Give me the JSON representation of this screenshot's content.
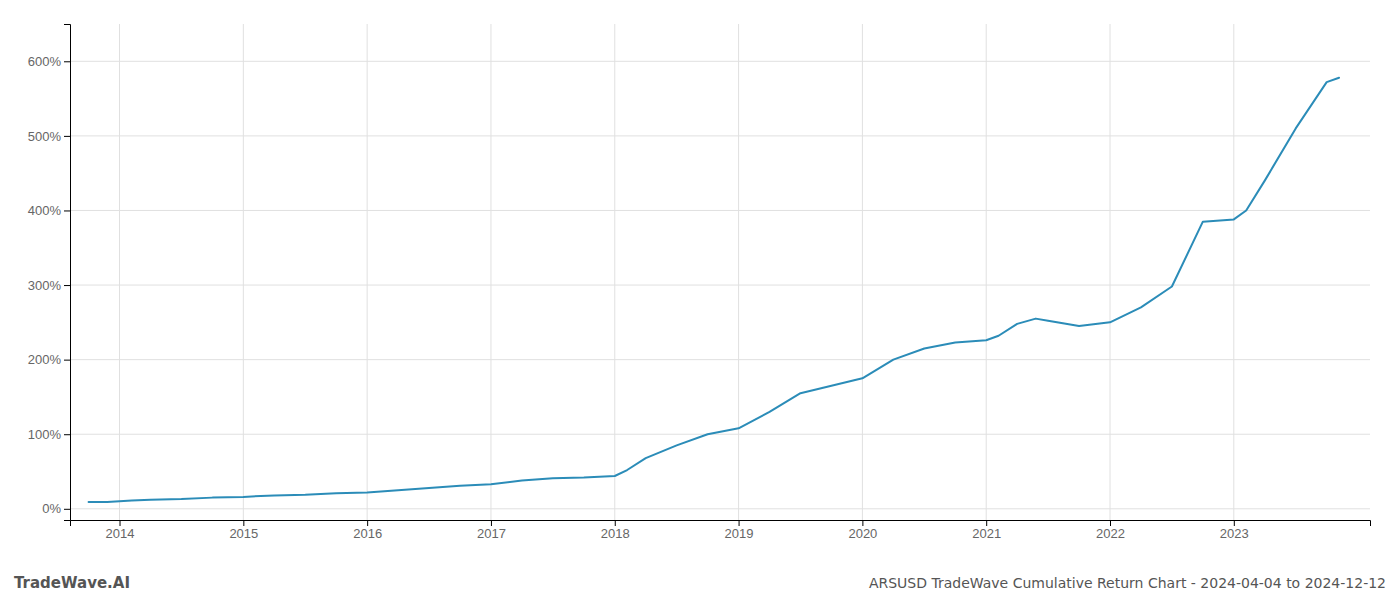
{
  "chart_data": {
    "type": "line",
    "title": "ARSUSD TradeWave Cumulative Return Chart - 2024-04-04 to 2024-12-12",
    "annotations": [
      "TradeWave.AI"
    ],
    "color": "#2b8cb8",
    "grid": true,
    "x": [
      2013.75,
      2013.9,
      2014.0,
      2014.1,
      2014.25,
      2014.5,
      2014.75,
      2015.0,
      2015.25,
      2015.5,
      2015.75,
      2016.0,
      2016.25,
      2016.5,
      2016.75,
      2017.0,
      2017.25,
      2017.5,
      2017.75,
      2018.0,
      2018.1,
      2018.25,
      2018.5,
      2018.75,
      2019.0,
      2019.25,
      2019.5,
      2019.75,
      2020.0,
      2020.25,
      2020.5,
      2020.75,
      2021.0,
      2021.1,
      2021.25,
      2021.4,
      2021.5,
      2021.75,
      2022.0,
      2022.25,
      2022.5,
      2022.75,
      2023.0,
      2023.1,
      2023.25,
      2023.5,
      2023.75,
      2023.85
    ],
    "values": [
      9,
      9,
      10,
      11,
      12,
      13,
      15,
      16,
      18,
      19,
      21,
      22,
      25,
      28,
      31,
      33,
      38,
      41,
      42,
      44,
      52,
      68,
      85,
      100,
      108,
      130,
      155,
      165,
      175,
      200,
      215,
      223,
      226,
      232,
      248,
      255,
      252,
      245,
      250,
      270,
      298,
      385,
      388,
      400,
      440,
      510,
      572,
      578
    ],
    "xlim": [
      2013.6,
      2024.1
    ],
    "xticks": [
      2014,
      2015,
      2016,
      2017,
      2018,
      2019,
      2020,
      2021,
      2022,
      2023
    ],
    "ylim": [
      -15,
      650
    ],
    "yticks": [
      {
        "value": 0,
        "label": "0%"
      },
      {
        "value": 100,
        "label": "100%"
      },
      {
        "value": 200,
        "label": "200%"
      },
      {
        "value": 300,
        "label": "300%"
      },
      {
        "value": 400,
        "label": "400%"
      },
      {
        "value": 500,
        "label": "500%"
      },
      {
        "value": 600,
        "label": "600%"
      }
    ]
  }
}
